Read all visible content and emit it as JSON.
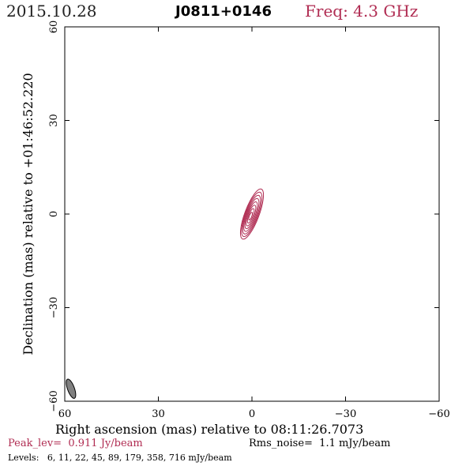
{
  "header": {
    "date": "2015.10.28",
    "source": "J0811+0146",
    "freq_label": "Freq: 4.3 GHz"
  },
  "footer": {
    "peak_label": "Peak_lev=",
    "peak_value": "0.911 Jy/beam",
    "rms_label": "Rms_noise=",
    "rms_value": "1.1 mJy/beam",
    "levels_label": "Levels:",
    "levels_value": "6,  11,  22,  45,  89, 179, 358, 716 mJy/beam"
  },
  "chart_data": {
    "type": "contour",
    "title": "J0811+0146",
    "xlabel": "Right ascension (mas) relative to 08:11:26.7073",
    "ylabel": "Declination (mas) relative to +01:46:52.220",
    "xlim": [
      60,
      -60
    ],
    "ylim": [
      -60,
      60
    ],
    "xticks": [
      60,
      30,
      0,
      -30,
      -60
    ],
    "yticks": [
      60,
      30,
      0,
      -30,
      -60
    ],
    "xtick_labels": [
      "60",
      "30",
      "0",
      "−30",
      "−60"
    ],
    "ytick_labels": [
      "60",
      "30",
      "0",
      "−30",
      "−60"
    ],
    "grid": false,
    "contour_color": "#b02c52",
    "beam_color": "#808080",
    "contour_levels_mJy": [
      6,
      11,
      22,
      45,
      89,
      179,
      358,
      716
    ],
    "source_center": [
      0,
      0
    ],
    "source_extent_mas": [
      [
        3,
        -8
      ],
      [
        -3,
        8
      ]
    ],
    "beam": {
      "center": [
        58,
        -56
      ],
      "major_mas": 6.5,
      "minor_mas": 2.2,
      "pa_deg": -20
    }
  }
}
